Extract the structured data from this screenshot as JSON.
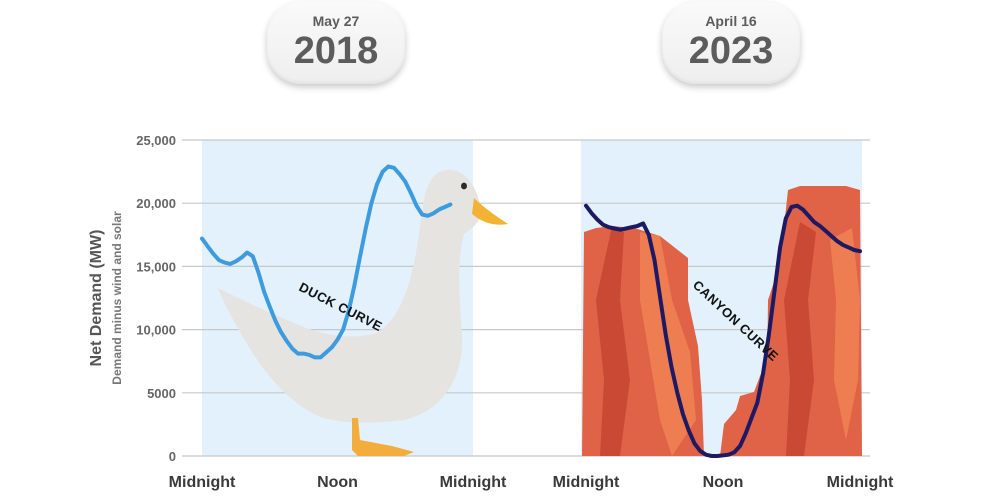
{
  "left_panel": {
    "date": "May 27",
    "year": "2018"
  },
  "right_panel": {
    "date": "April 16",
    "year": "2023"
  },
  "colors": {
    "duck_line": "#3d9be0",
    "canyon_line": "#1d1a63",
    "panel_bg": "#e3f1fc",
    "gridline": "#c8c8c8",
    "duck_body": "#e6e4e1",
    "duck_beak": "#f2b233",
    "duck_feet": "#f2ad3c",
    "canyon_rock": "#e06247",
    "canyon_rock_dark": "#c94935",
    "canyon_rock_light": "#ee7e52"
  },
  "illustrations": [
    "duck-illustration",
    "canyon-illustration"
  ],
  "chart_data": [
    {
      "type": "line",
      "title": "",
      "ylabel": "Net Demand (MW)",
      "ysublabel": "Demand minus wind and solar",
      "ylim": [
        0,
        25000
      ],
      "yticks": [
        0,
        5000,
        10000,
        15000,
        20000,
        25000
      ],
      "ytick_labels": [
        "0",
        "5000",
        "10,000",
        "15,000",
        "20,000",
        "25,000"
      ],
      "xlim": [
        0,
        24
      ],
      "xticks": [
        0,
        12,
        24
      ],
      "xtick_labels": [
        "Midnight",
        "Noon",
        "Midnight"
      ],
      "grid": true,
      "annotations": [
        "DUCK CURVE"
      ],
      "series": [
        {
          "x": [
            0,
            0.5,
            1,
            1.5,
            2,
            2.5,
            3,
            3.5,
            4,
            4.5,
            5,
            5.5,
            6,
            6.5,
            7,
            7.5,
            8,
            8.5,
            9,
            9.5,
            10,
            10.5,
            11,
            11.5,
            12,
            12.5,
            13,
            13.5,
            14,
            14.5,
            15,
            15.5,
            16,
            16.5,
            17,
            17.5,
            18,
            18.5,
            19,
            19.5,
            20,
            20.5,
            21,
            21.5,
            22
          ],
          "y": [
            17200,
            16600,
            16000,
            15500,
            15300,
            15200,
            15400,
            15700,
            16100,
            15800,
            14500,
            13000,
            11800,
            10700,
            9800,
            9100,
            8500,
            8100,
            8100,
            8000,
            7800,
            7800,
            8200,
            8600,
            9200,
            10000,
            11500,
            13500,
            15800,
            18000,
            20000,
            21500,
            22500,
            22900,
            22800,
            22300,
            21700,
            20800,
            19800,
            19100,
            19000,
            19200,
            19500,
            19700,
            19900
          ]
        }
      ]
    },
    {
      "type": "line",
      "title": "",
      "ylim": [
        0,
        25000
      ],
      "yticks": [
        0,
        5000,
        10000,
        15000,
        20000,
        25000
      ],
      "xlim": [
        0,
        24
      ],
      "xticks": [
        0,
        12,
        24
      ],
      "xtick_labels": [
        "Midnight",
        "Noon",
        "Midnight"
      ],
      "grid": true,
      "annotations": [
        "CANYON CURVE"
      ],
      "series": [
        {
          "x": [
            0,
            0.5,
            1,
            1.5,
            2,
            2.5,
            3,
            3.5,
            4,
            4.5,
            5,
            5.5,
            6,
            6.5,
            7,
            7.5,
            8,
            8.5,
            9,
            9.5,
            10,
            10.5,
            11,
            11.5,
            12,
            12.5,
            13,
            13.5,
            14,
            14.5,
            15,
            15.5,
            16,
            16.5,
            17,
            17.5,
            18,
            18.5,
            19,
            19.5,
            20,
            20.5,
            21,
            21.5,
            22,
            22.5,
            23,
            23.5,
            24
          ],
          "y": [
            19800,
            19200,
            18700,
            18300,
            18100,
            18000,
            17900,
            18000,
            18100,
            18200,
            18400,
            17500,
            15500,
            12500,
            9500,
            7000,
            5000,
            3300,
            2000,
            1000,
            400,
            100,
            0,
            0,
            50,
            100,
            300,
            800,
            1800,
            3000,
            4200,
            6500,
            9500,
            13000,
            16500,
            18800,
            19700,
            19800,
            19500,
            19000,
            18500,
            18200,
            17800,
            17400,
            17000,
            16700,
            16500,
            16300,
            16200
          ]
        }
      ]
    }
  ]
}
